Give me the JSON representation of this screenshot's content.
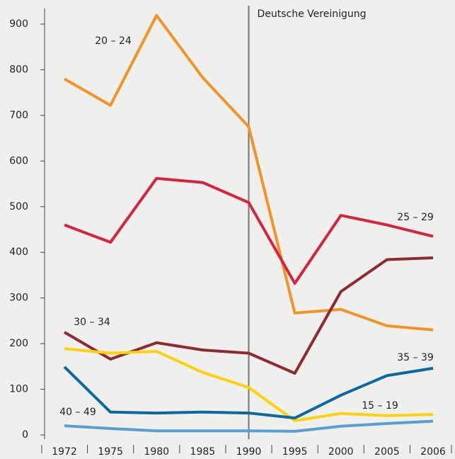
{
  "chart_data": {
    "type": "line",
    "categories": [
      "1972",
      "1975",
      "1980",
      "1985",
      "1990",
      "1995",
      "2000",
      "2005",
      "2006"
    ],
    "series": [
      {
        "name": "20 – 24",
        "color": "#f39323",
        "values": [
          780,
          722,
          919,
          783,
          675,
          267,
          275,
          239,
          230
        ]
      },
      {
        "name": "25 – 29",
        "color": "#d5243f",
        "values": [
          460,
          422,
          562,
          553,
          509,
          332,
          481,
          460,
          435
        ]
      },
      {
        "name": "30 – 34",
        "color": "#8e2a32",
        "values": [
          225,
          166,
          202,
          186,
          179,
          135,
          314,
          384,
          388
        ]
      },
      {
        "name": "15 – 19",
        "color": "#fcd20d",
        "values": [
          189,
          179,
          183,
          137,
          104,
          31,
          47,
          42,
          45
        ]
      },
      {
        "name": "35 – 39",
        "color": "#0a6aa0",
        "values": [
          149,
          50,
          48,
          50,
          48,
          37,
          87,
          130,
          146
        ]
      },
      {
        "name": "40 – 49",
        "color": "#5b9fd0",
        "values": [
          20,
          14,
          9,
          9,
          9,
          8,
          19,
          25,
          30
        ]
      }
    ],
    "annotation": {
      "text": "Deutsche Vereinigung",
      "x": "1990"
    },
    "ylim": [
      0,
      900
    ],
    "yticks": [
      0,
      100,
      200,
      300,
      400,
      500,
      600,
      700,
      800,
      900
    ]
  }
}
